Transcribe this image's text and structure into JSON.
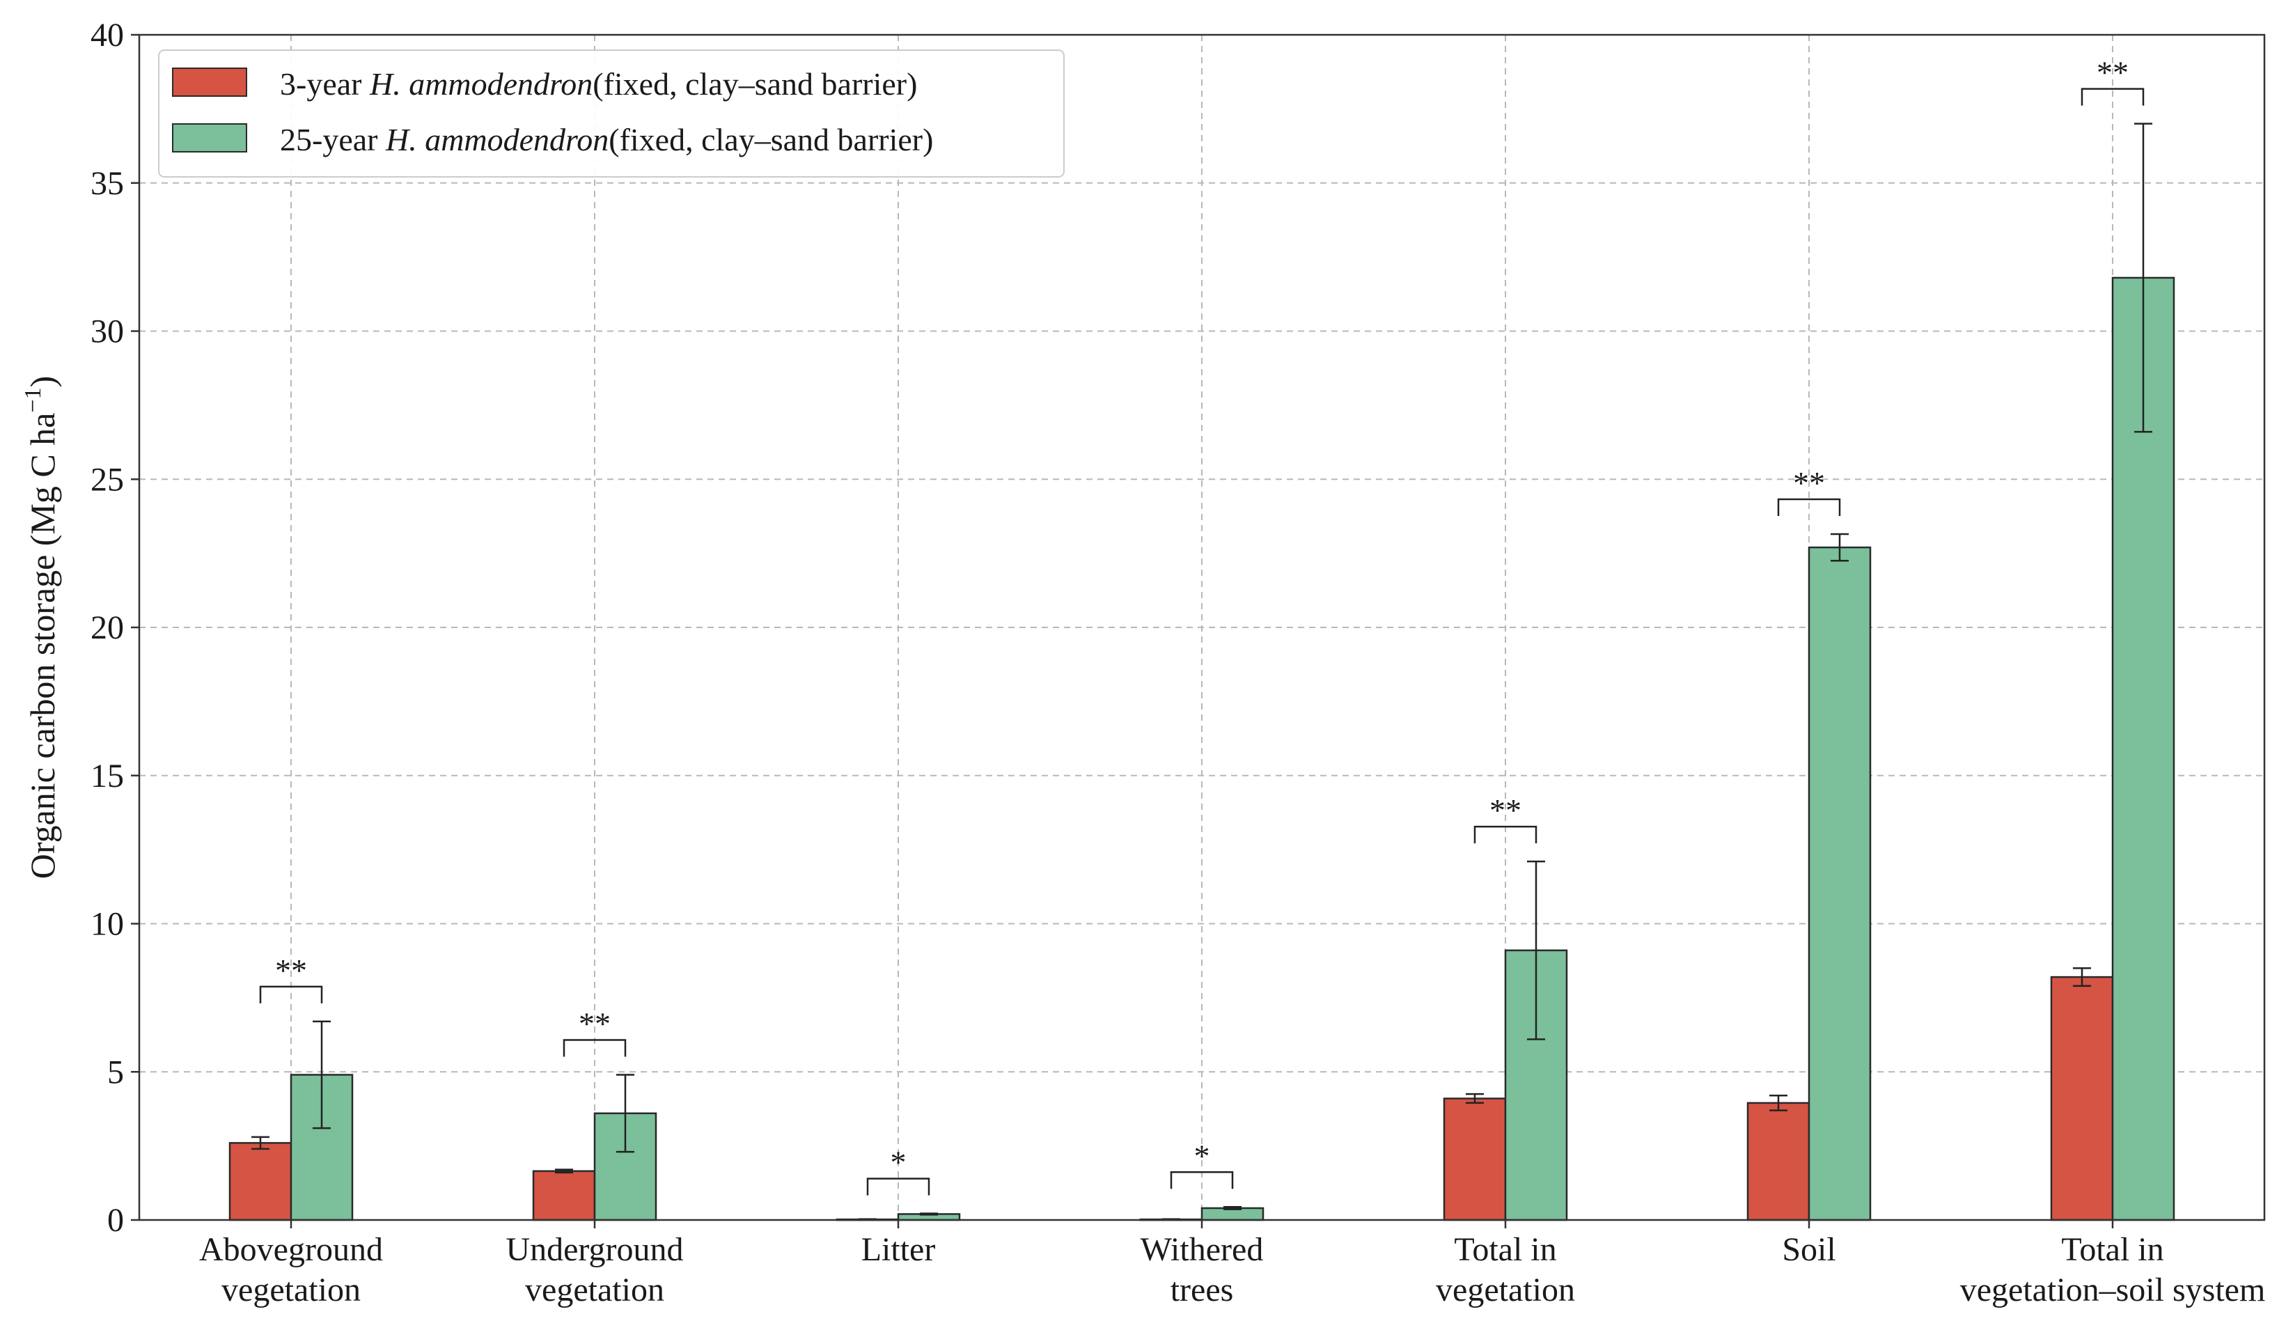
{
  "chart_data": {
    "type": "bar",
    "title": "",
    "xlabel": "",
    "ylabel": "Organic carbon storage (Mg C ha",
    "ylabel_superscript": "−1",
    "ylabel_close": ")",
    "ylim": [
      0,
      40
    ],
    "yticks": [
      0,
      5,
      10,
      15,
      20,
      25,
      30,
      35,
      40
    ],
    "grid": true,
    "legend_position": "top-left",
    "categories": [
      [
        "Aboveground",
        "vegetation"
      ],
      [
        "Underground",
        "vegetation"
      ],
      [
        "Litter"
      ],
      [
        "Withered",
        "trees"
      ],
      [
        "Total in",
        "vegetation"
      ],
      [
        "Soil"
      ],
      [
        "Total in",
        "vegetation–soil system"
      ]
    ],
    "series": [
      {
        "name_prefix": "3-year ",
        "name_species": "H. ammodendron",
        "name_suffix": "(fixed, clay–sand barrier)",
        "color": "#d65444",
        "values": [
          2.6,
          1.65,
          0.02,
          0.02,
          4.1,
          3.95,
          8.2
        ],
        "errors": [
          0.2,
          0.05,
          0.01,
          0.01,
          0.15,
          0.25,
          0.3
        ]
      },
      {
        "name_prefix": "25-year ",
        "name_species": "H. ammodendron",
        "name_suffix": "(fixed, clay–sand barrier)",
        "color": "#7bc09a",
        "values": [
          4.9,
          3.6,
          0.2,
          0.4,
          9.1,
          22.7,
          31.8
        ],
        "errors": [
          1.8,
          1.3,
          0.02,
          0.04,
          3.0,
          0.45,
          5.2
        ]
      }
    ],
    "significance": [
      "**",
      "**",
      "*",
      "*",
      "**",
      "**",
      "**"
    ]
  }
}
